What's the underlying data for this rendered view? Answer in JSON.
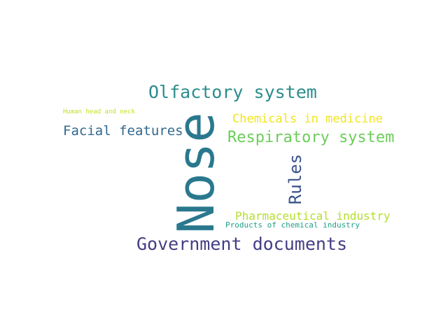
{
  "words": [
    {
      "text": "Nose",
      "color": "#2a788e"
    },
    {
      "text": "Olfactory system",
      "color": "#2c8c8c"
    },
    {
      "text": "Government documents",
      "color": "#433e85"
    },
    {
      "text": "Respiratory system",
      "color": "#6ccd5a"
    },
    {
      "text": "Facial features",
      "color": "#31688e"
    },
    {
      "text": "Rules",
      "color": "#3b528b"
    },
    {
      "text": "Chemicals in medicine",
      "color": "#f1e51d"
    },
    {
      "text": "Pharmaceutical industry",
      "color": "#b5de2b"
    },
    {
      "text": "Products of chemical industry",
      "color": "#1fa088"
    },
    {
      "text": "Human head and neck",
      "color": "#c2df23"
    }
  ]
}
